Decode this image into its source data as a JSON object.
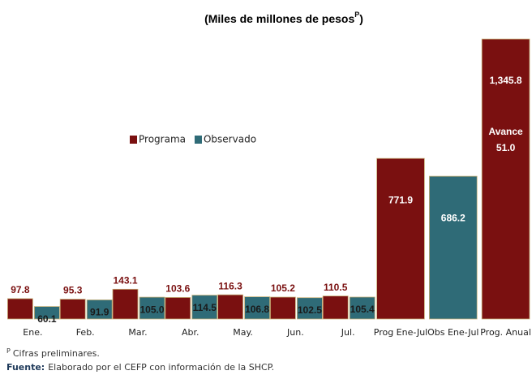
{
  "chart_data": {
    "type": "bar",
    "title_parts": [
      "(Miles de millones de pesos",
      "P",
      ")"
    ],
    "categories": [
      "Ene.",
      "Feb.",
      "Mar.",
      "Abr.",
      "May.",
      "Jun.",
      "Jul.",
      "Prog Ene-Jul",
      "Obs Ene-Jul",
      "Prog. Anual"
    ],
    "series": [
      {
        "name": "Programa",
        "color": "#7a1010",
        "values": [
          97.8,
          95.3,
          143.1,
          103.6,
          116.3,
          105.2,
          110.5,
          771.9,
          null,
          1345.8
        ],
        "value_labels": [
          "97.8",
          "95.3",
          "143.1",
          "103.6",
          "116.3",
          "105.2",
          "110.5",
          "771.9",
          null,
          "1,345.8"
        ]
      },
      {
        "name": "Observado",
        "color": "#2f6b77",
        "values": [
          60.1,
          91.9,
          105.0,
          114.5,
          106.8,
          102.5,
          105.4,
          null,
          686.2,
          null
        ],
        "value_labels": [
          "60.1",
          "91.9",
          "105.0",
          "114.5",
          "106.8",
          "102.5",
          "105.4",
          null,
          "686.2",
          null
        ]
      }
    ],
    "annotation": [
      "Avance",
      "51.0"
    ],
    "ylim": [
      0,
      1350
    ],
    "legend": "upper-left",
    "footnote": [
      "P",
      "Cifras preliminares."
    ],
    "source": [
      "Fuente:",
      "Elaborado por el CEFP con información de la SHCP."
    ]
  }
}
